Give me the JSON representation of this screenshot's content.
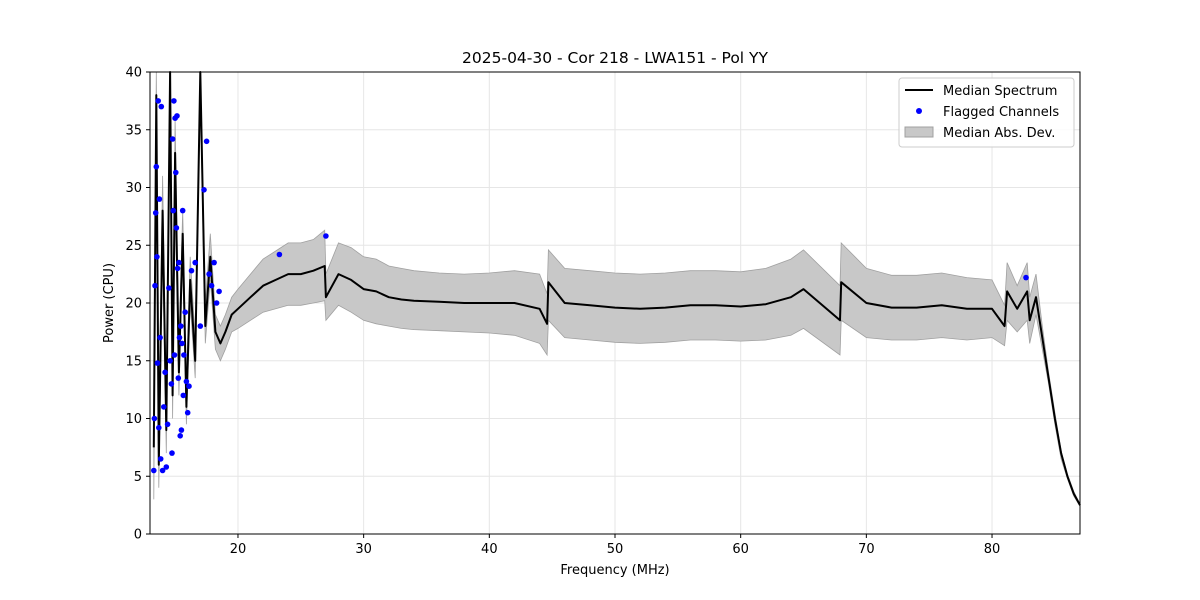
{
  "chart_data": {
    "type": "line",
    "title": "2025-04-30 - Cor 218 - LWA151 - Pol YY",
    "xlabel": "Frequency (MHz)",
    "ylabel": "Power (CPU)",
    "xlim": [
      13.0,
      87.0
    ],
    "ylim": [
      0,
      40
    ],
    "xticks": [
      20,
      30,
      40,
      50,
      60,
      70,
      80
    ],
    "yticks": [
      0,
      5,
      10,
      15,
      20,
      25,
      30,
      35,
      40
    ],
    "grid": true,
    "legend_position": "top-right",
    "legend": [
      "Median Spectrum",
      "Flagged Channels",
      "Median Abs. Dev."
    ],
    "colors": {
      "line": "#000000",
      "flagged": "#0000ff",
      "band": "#c8c8c8",
      "band_edge": "#a0a0a0",
      "grid": "#e6e6e6"
    },
    "series": [
      {
        "name": "Median Spectrum",
        "x": [
          13.3,
          13.5,
          13.7,
          14.0,
          14.3,
          14.6,
          14.8,
          15.0,
          15.3,
          15.6,
          15.9,
          16.2,
          16.6,
          17.0,
          17.4,
          17.8,
          18.2,
          18.6,
          19.0,
          19.5,
          20.0,
          21.0,
          22.0,
          23.0,
          24.0,
          25.0,
          26.0,
          26.9,
          27.0,
          28.0,
          29.0,
          30.0,
          31.0,
          32.0,
          33.0,
          34.0,
          36.0,
          38.0,
          40.0,
          42.0,
          44.0,
          44.6,
          44.7,
          46.0,
          48.0,
          50.0,
          52.0,
          54.0,
          56.0,
          58.0,
          60.0,
          62.0,
          64.0,
          65.0,
          67.9,
          68.0,
          70.0,
          72.0,
          74.0,
          76.0,
          78.0,
          80.0,
          81.0,
          81.2,
          82.0,
          82.8,
          83.0,
          83.5,
          84.0,
          84.5,
          85.0,
          85.5,
          86.0,
          86.5,
          87.0
        ],
        "values": [
          7.5,
          38,
          6,
          28,
          9,
          40,
          12,
          33,
          14,
          26,
          11,
          22,
          15,
          40,
          18,
          24,
          17.5,
          16.5,
          17.5,
          19,
          19.5,
          20.5,
          21.5,
          22,
          22.5,
          22.5,
          22.8,
          23.2,
          20.5,
          22.5,
          22,
          21.2,
          21,
          20.5,
          20.3,
          20.2,
          20.1,
          20,
          20,
          20,
          19.5,
          18.2,
          21.8,
          20,
          19.8,
          19.6,
          19.5,
          19.6,
          19.8,
          19.8,
          19.7,
          19.9,
          20.5,
          21.2,
          18.5,
          21.8,
          20,
          19.6,
          19.6,
          19.8,
          19.5,
          19.5,
          18,
          21,
          19.5,
          21,
          18.5,
          20.5,
          17,
          13.5,
          10,
          7,
          5,
          3.5,
          2.5
        ]
      },
      {
        "name": "Median Abs. Dev.",
        "type": "area",
        "x": [
          13.3,
          13.5,
          13.7,
          14.0,
          14.3,
          14.6,
          14.8,
          15.0,
          15.3,
          15.6,
          15.9,
          16.2,
          16.6,
          17.0,
          17.4,
          17.8,
          18.2,
          18.6,
          19.0,
          19.5,
          20.0,
          21.0,
          22.0,
          23.0,
          24.0,
          25.0,
          26.0,
          26.9,
          27.0,
          28.0,
          29.0,
          30.0,
          31.0,
          32.0,
          33.0,
          34.0,
          36.0,
          38.0,
          40.0,
          42.0,
          44.0,
          44.6,
          44.7,
          46.0,
          48.0,
          50.0,
          52.0,
          54.0,
          56.0,
          58.0,
          60.0,
          62.0,
          64.0,
          65.0,
          67.9,
          68.0,
          70.0,
          72.0,
          74.0,
          76.0,
          78.0,
          80.0,
          81.0,
          81.2,
          82.0,
          82.8,
          83.0,
          83.5,
          84.0,
          84.5,
          85.0,
          85.5,
          86.0,
          86.5,
          87.0
        ],
        "lower": [
          3,
          35,
          4,
          25,
          7,
          38,
          10,
          30,
          12,
          24,
          9.5,
          20,
          13.5,
          38,
          16.5,
          22,
          16,
          15,
          16,
          17.5,
          17.8,
          18.5,
          19.2,
          19.5,
          19.8,
          19.8,
          20,
          20.2,
          18.5,
          19.8,
          19.2,
          18.5,
          18.2,
          18,
          17.8,
          17.7,
          17.6,
          17.5,
          17.4,
          17.2,
          16.5,
          15.5,
          18.5,
          17,
          16.8,
          16.6,
          16.5,
          16.6,
          16.8,
          16.8,
          16.7,
          16.8,
          17.2,
          17.8,
          15.5,
          18.5,
          17,
          16.8,
          16.8,
          17,
          16.8,
          17,
          16.3,
          18.5,
          17.5,
          18.5,
          16.5,
          19,
          16,
          13,
          9.5,
          6.5,
          4.8,
          3.3,
          2.4
        ],
        "upper": [
          12,
          40,
          10,
          31,
          11,
          40,
          14,
          36,
          16,
          28,
          13,
          24,
          17,
          40,
          20,
          26,
          19,
          18,
          19,
          20.5,
          21.2,
          22.5,
          23.8,
          24.5,
          25.2,
          25.2,
          25.5,
          26.3,
          22.5,
          25.2,
          24.8,
          24,
          23.8,
          23.2,
          23,
          22.8,
          22.6,
          22.5,
          22.6,
          22.8,
          22.5,
          20.8,
          24.6,
          23,
          22.8,
          22.6,
          22.5,
          22.6,
          22.8,
          22.8,
          22.7,
          23,
          23.8,
          24.6,
          21.5,
          25.2,
          23,
          22.4,
          22.4,
          22.6,
          22.2,
          22,
          19.8,
          23.5,
          21.5,
          23.5,
          20.5,
          22.5,
          18,
          14,
          10.5,
          7.2,
          5.2,
          3.7,
          2.6
        ]
      }
    ],
    "flagged_channels": {
      "name": "Flagged Channels",
      "x": [
        13.3,
        13.35,
        13.4,
        13.45,
        13.5,
        13.55,
        13.6,
        13.65,
        13.7,
        13.75,
        13.8,
        13.85,
        13.9,
        14.0,
        14.1,
        14.2,
        14.3,
        14.4,
        14.5,
        14.6,
        14.7,
        14.75,
        14.8,
        14.85,
        14.9,
        14.95,
        15.0,
        15.05,
        15.1,
        15.15,
        15.2,
        15.25,
        15.3,
        15.35,
        15.4,
        15.45,
        15.5,
        15.55,
        15.6,
        15.65,
        15.7,
        15.8,
        15.9,
        16.0,
        16.1,
        16.3,
        16.6,
        17.0,
        17.3,
        17.5,
        17.7,
        17.9,
        18.1,
        18.3,
        18.5,
        23.3,
        27.0,
        82.7
      ],
      "values": [
        5.5,
        10,
        21.5,
        27.8,
        31.8,
        24,
        14.8,
        37.5,
        9.2,
        29,
        17,
        6.5,
        37,
        5.5,
        11,
        14,
        5.8,
        9.5,
        21.3,
        15,
        13,
        7,
        34.2,
        28,
        37.5,
        15.5,
        36,
        31.3,
        26.5,
        36.2,
        23,
        13.5,
        23.5,
        17,
        8.5,
        18,
        9,
        16.5,
        28,
        12,
        15.5,
        19.2,
        13.2,
        10.5,
        12.8,
        22.8,
        23.5,
        18,
        29.8,
        34,
        22.5,
        21.5,
        23.5,
        20,
        21,
        24.2,
        25.8,
        22.2
      ]
    }
  }
}
